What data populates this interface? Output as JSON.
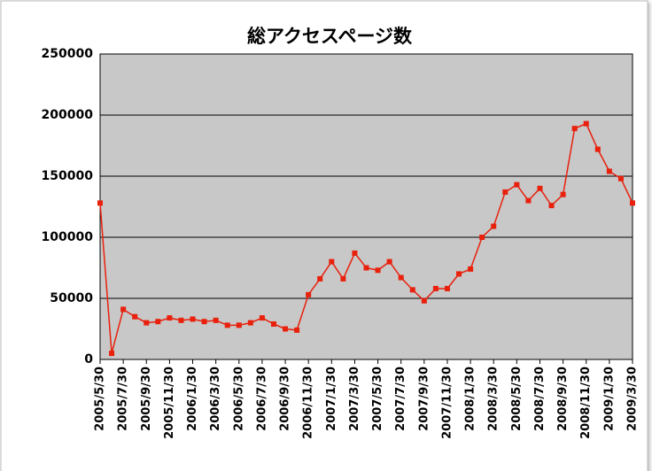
{
  "chart_data": {
    "type": "line",
    "title": "総アクセスページ数",
    "categories": [
      "2005/5/30",
      null,
      "2005/7/30",
      null,
      "2005/9/30",
      null,
      "2005/11/30",
      null,
      "2006/1/30",
      null,
      "2006/3/30",
      null,
      "2006/5/30",
      null,
      "2006/7/30",
      null,
      "2006/9/30",
      null,
      "2006/11/30",
      null,
      "2007/1/30",
      null,
      "2007/3/30",
      null,
      "2007/5/30",
      null,
      "2007/7/30",
      null,
      "2007/9/30",
      null,
      "2007/11/30",
      null,
      "2008/1/30",
      null,
      "2008/3/30",
      null,
      "2008/5/30",
      null,
      "2008/7/30",
      null,
      "2008/9/30",
      null,
      "2008/11/30",
      null,
      "2009/1/30",
      null,
      "2009/3/30"
    ],
    "series": [
      {
        "name": "総アクセスページ数",
        "color": "#e8200c",
        "values": [
          128000,
          5000,
          41000,
          35000,
          30000,
          31000,
          34000,
          32000,
          33000,
          31000,
          32000,
          28000,
          28000,
          30000,
          34000,
          29000,
          25000,
          24000,
          53000,
          66000,
          80000,
          66000,
          87000,
          75000,
          73000,
          80000,
          67000,
          57000,
          48000,
          58000,
          58000,
          70000,
          74000,
          100000,
          109000,
          137000,
          143000,
          130000,
          140000,
          126000,
          135000,
          189000,
          193000,
          172000,
          154000,
          148000,
          128000
        ]
      }
    ],
    "ylim": [
      0,
      250000
    ],
    "yticks": [
      0,
      50000,
      100000,
      150000,
      200000,
      250000
    ],
    "grid": true
  }
}
